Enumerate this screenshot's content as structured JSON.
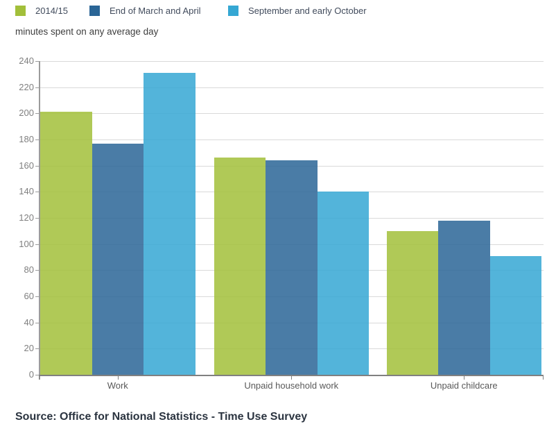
{
  "legend": {
    "items": [
      {
        "label": "2014/15",
        "color": "#a2bf3a"
      },
      {
        "label": "End of March and April",
        "color": "#2a6596"
      },
      {
        "label": "September and early October",
        "color": "#35a7d3"
      }
    ]
  },
  "subtitle": "minutes spent on any average day",
  "source": "Source: Office for National Statistics - Time Use Survey",
  "chart_data": {
    "type": "bar",
    "title": "",
    "ylabel": "minutes spent on any average day",
    "xlabel": "",
    "categories": [
      "Work",
      "Unpaid household work",
      "Unpaid childcare"
    ],
    "series": [
      {
        "name": "2014/15",
        "color": "#a2bf3a",
        "values": [
          201,
          166,
          110
        ]
      },
      {
        "name": "End of March and April",
        "color": "#2a6596",
        "values": [
          177,
          164,
          118
        ]
      },
      {
        "name": "September and early October",
        "color": "#35a7d3",
        "values": [
          231,
          140,
          91
        ]
      }
    ],
    "ylim": [
      0,
      240
    ],
    "ytick_interval": 20,
    "grid": true,
    "legend_position": "top"
  }
}
